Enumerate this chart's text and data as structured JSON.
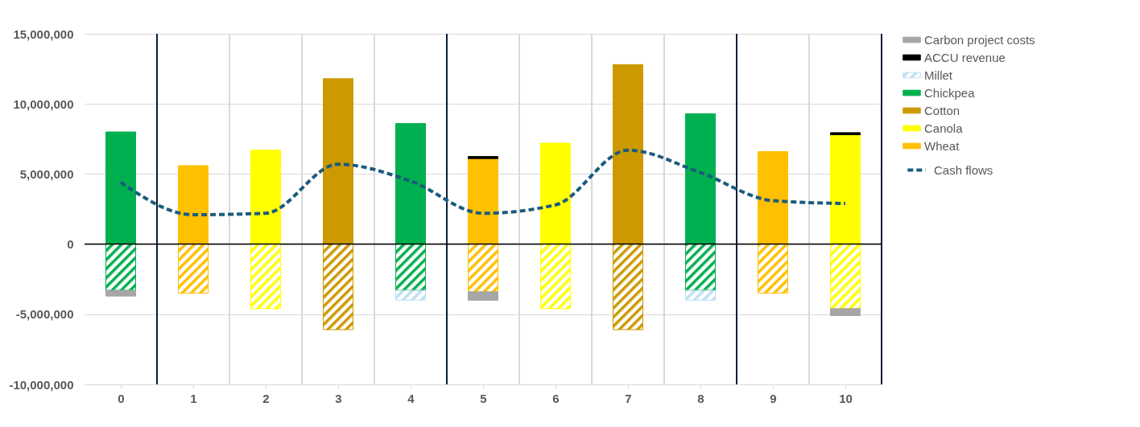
{
  "chart_data": {
    "type": "bar",
    "stacked": true,
    "x": [
      0,
      1,
      2,
      3,
      4,
      5,
      6,
      7,
      8,
      9,
      10
    ],
    "xlim": [
      -0.5,
      10.5
    ],
    "xticks": [
      0,
      1,
      2,
      3,
      4,
      5,
      6,
      7,
      8,
      9,
      10
    ],
    "ylim": [
      -10000000,
      15000000
    ],
    "yticks": [
      {
        "value": -10000000,
        "label": "-10,000,000"
      },
      {
        "value": -5000000,
        "label": "-5,000,000"
      },
      0,
      {
        "value": 5000000,
        "label": "5,000,000"
      },
      {
        "value": 10000000,
        "label": "10,000,000"
      },
      {
        "value": 15000000,
        "label": "15,000,000"
      }
    ],
    "grid": "y",
    "legend": "right",
    "line_style": "dashed",
    "ref_lines": [
      {
        "axis": "y",
        "value": 0,
        "color": "#000000"
      },
      {
        "axis": "x",
        "value": 1.5,
        "color": "#d9d9d9"
      },
      {
        "axis": "x",
        "value": 2.5,
        "color": "#d9d9d9"
      },
      {
        "axis": "x",
        "value": 3.5,
        "color": "#d9d9d9"
      },
      {
        "axis": "x",
        "value": 5.5,
        "color": "#d9d9d9"
      },
      {
        "axis": "x",
        "value": 6.5,
        "color": "#d9d9d9"
      },
      {
        "axis": "x",
        "value": 7.5,
        "color": "#d9d9d9"
      },
      {
        "axis": "x",
        "value": 9.5,
        "color": "#d9d9d9"
      },
      {
        "axis": "x",
        "value": 0.5,
        "color": "#0b1f35"
      },
      {
        "axis": "x",
        "value": 4.5,
        "color": "#0b1f35"
      },
      {
        "axis": "x",
        "value": 8.5,
        "color": "#0b1f35"
      },
      {
        "axis": "x",
        "value": 10.5,
        "color": "#0b1f35"
      }
    ],
    "series": [
      {
        "name": "Wheat",
        "color": "#ffc000",
        "values": [
          null,
          5600000,
          null,
          null,
          null,
          6100000,
          null,
          null,
          null,
          6600000,
          null
        ]
      },
      {
        "name": "Canola",
        "color": "#ffff00",
        "values": [
          null,
          null,
          6700000,
          null,
          null,
          null,
          7200000,
          null,
          null,
          null,
          7800000
        ]
      },
      {
        "name": "Cotton",
        "color": "#cc9900",
        "values": [
          null,
          null,
          null,
          11800000,
          null,
          null,
          null,
          12800000,
          null,
          null,
          null
        ]
      },
      {
        "name": "Chickpea",
        "color": "#00b050",
        "values": [
          8000000,
          null,
          null,
          null,
          8600000,
          null,
          null,
          null,
          9300000,
          null,
          null
        ]
      },
      {
        "color": "#ffc000",
        "values": [
          null,
          -3500000,
          null,
          null,
          null,
          -3400000,
          null,
          null,
          null,
          -3500000,
          null
        ]
      },
      {
        "color": "#ffff00",
        "values": [
          null,
          null,
          -4600000,
          null,
          null,
          null,
          -4600000,
          null,
          null,
          null,
          -4600000
        ]
      },
      {
        "color": "#cc9900",
        "values": [
          null,
          null,
          null,
          -6100000,
          null,
          null,
          null,
          -6100000,
          null,
          null,
          null
        ]
      },
      {
        "color": "#00b050",
        "values": [
          -3300000,
          null,
          null,
          null,
          -3300000,
          null,
          null,
          null,
          -3300000,
          null,
          null
        ]
      },
      {
        "name": "Millet",
        "color": "#bfe0f2",
        "values": [
          null,
          null,
          null,
          null,
          -700000,
          null,
          null,
          null,
          -700000,
          null,
          null
        ]
      },
      {
        "name": "ACCU revenue",
        "color": "#000000",
        "values": [
          null,
          null,
          null,
          null,
          null,
          150000,
          null,
          null,
          null,
          null,
          150000
        ]
      },
      {
        "name": "Carbon project costs",
        "color": "#a6a6a6",
        "values": [
          -400000,
          null,
          null,
          null,
          null,
          -600000,
          null,
          null,
          null,
          null,
          -500000
        ]
      },
      {
        "name": "Cash flows",
        "type": "line",
        "color": "#1b5b7e",
        "values": [
          4400000,
          2100000,
          2200000,
          5700000,
          4500000,
          2200000,
          2800000,
          6700000,
          5100000,
          3100000,
          2900000
        ]
      }
    ]
  }
}
